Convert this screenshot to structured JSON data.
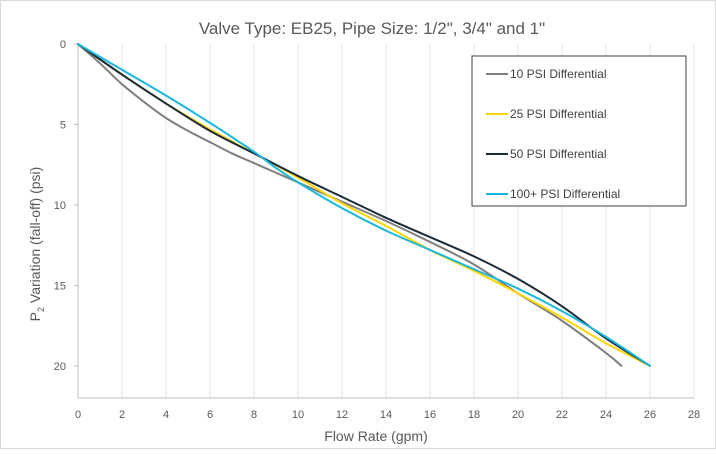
{
  "chart_data": {
    "type": "line",
    "title": "Valve Type: EB25, Pipe Size: 1/2\", 3/4\" and 1\"",
    "xlabel": "Flow Rate (gpm)",
    "ylabel_main": "P",
    "ylabel_sub": "2",
    "ylabel_rest": " Variation (fall-off) (psi)",
    "xlim": [
      0,
      28
    ],
    "ylim": [
      0,
      22
    ],
    "y_inverted": true,
    "x_ticks": [
      0,
      2,
      4,
      6,
      8,
      10,
      12,
      14,
      16,
      18,
      20,
      22,
      24,
      26,
      28
    ],
    "y_ticks": [
      0,
      5,
      10,
      15,
      20
    ],
    "grid": "vertical",
    "legend_position": "top-right",
    "series": [
      {
        "name": "10 PSI Differential",
        "color": "#7f7f7f",
        "points": [
          [
            0,
            0
          ],
          [
            1,
            1.2
          ],
          [
            2,
            2.5
          ],
          [
            3,
            3.6
          ],
          [
            4,
            4.6
          ],
          [
            5,
            5.4
          ],
          [
            6,
            6.1
          ],
          [
            7,
            6.8
          ],
          [
            8,
            7.4
          ],
          [
            9,
            8.0
          ],
          [
            10,
            8.6
          ],
          [
            12,
            9.8
          ],
          [
            14,
            11.0
          ],
          [
            16,
            12.3
          ],
          [
            18,
            13.7
          ],
          [
            20,
            15.5
          ],
          [
            22,
            17.2
          ],
          [
            24,
            19.2
          ],
          [
            24.7,
            20
          ]
        ]
      },
      {
        "name": "25 PSI Differential",
        "color": "#ffd500",
        "points": [
          [
            0,
            0
          ],
          [
            2,
            1.9
          ],
          [
            4,
            3.7
          ],
          [
            6,
            5.3
          ],
          [
            8,
            6.8
          ],
          [
            10,
            8.3
          ],
          [
            12,
            9.9
          ],
          [
            14,
            11.3
          ],
          [
            16,
            12.8
          ],
          [
            18,
            14.1
          ],
          [
            20,
            15.5
          ],
          [
            22,
            17.0
          ],
          [
            24,
            18.6
          ],
          [
            26,
            20
          ]
        ]
      },
      {
        "name": "50 PSI Differential",
        "color": "#1a2b3a",
        "points": [
          [
            0,
            0
          ],
          [
            2,
            1.9
          ],
          [
            4,
            3.7
          ],
          [
            6,
            5.4
          ],
          [
            8,
            6.8
          ],
          [
            10,
            8.2
          ],
          [
            12,
            9.5
          ],
          [
            14,
            10.8
          ],
          [
            16,
            12.0
          ],
          [
            18,
            13.2
          ],
          [
            20,
            14.6
          ],
          [
            22,
            16.3
          ],
          [
            24,
            18.3
          ],
          [
            26,
            20
          ]
        ]
      },
      {
        "name": "100+ PSI Differential",
        "color": "#1ab8dc",
        "points": [
          [
            0,
            0
          ],
          [
            2,
            1.6
          ],
          [
            4,
            3.2
          ],
          [
            6,
            4.9
          ],
          [
            8,
            6.7
          ],
          [
            9,
            7.7
          ],
          [
            10,
            8.6
          ],
          [
            12,
            10.2
          ],
          [
            14,
            11.6
          ],
          [
            16,
            12.8
          ],
          [
            18,
            14.0
          ],
          [
            20,
            15.2
          ],
          [
            22,
            16.6
          ],
          [
            24,
            18.2
          ],
          [
            26,
            20
          ]
        ]
      }
    ]
  }
}
